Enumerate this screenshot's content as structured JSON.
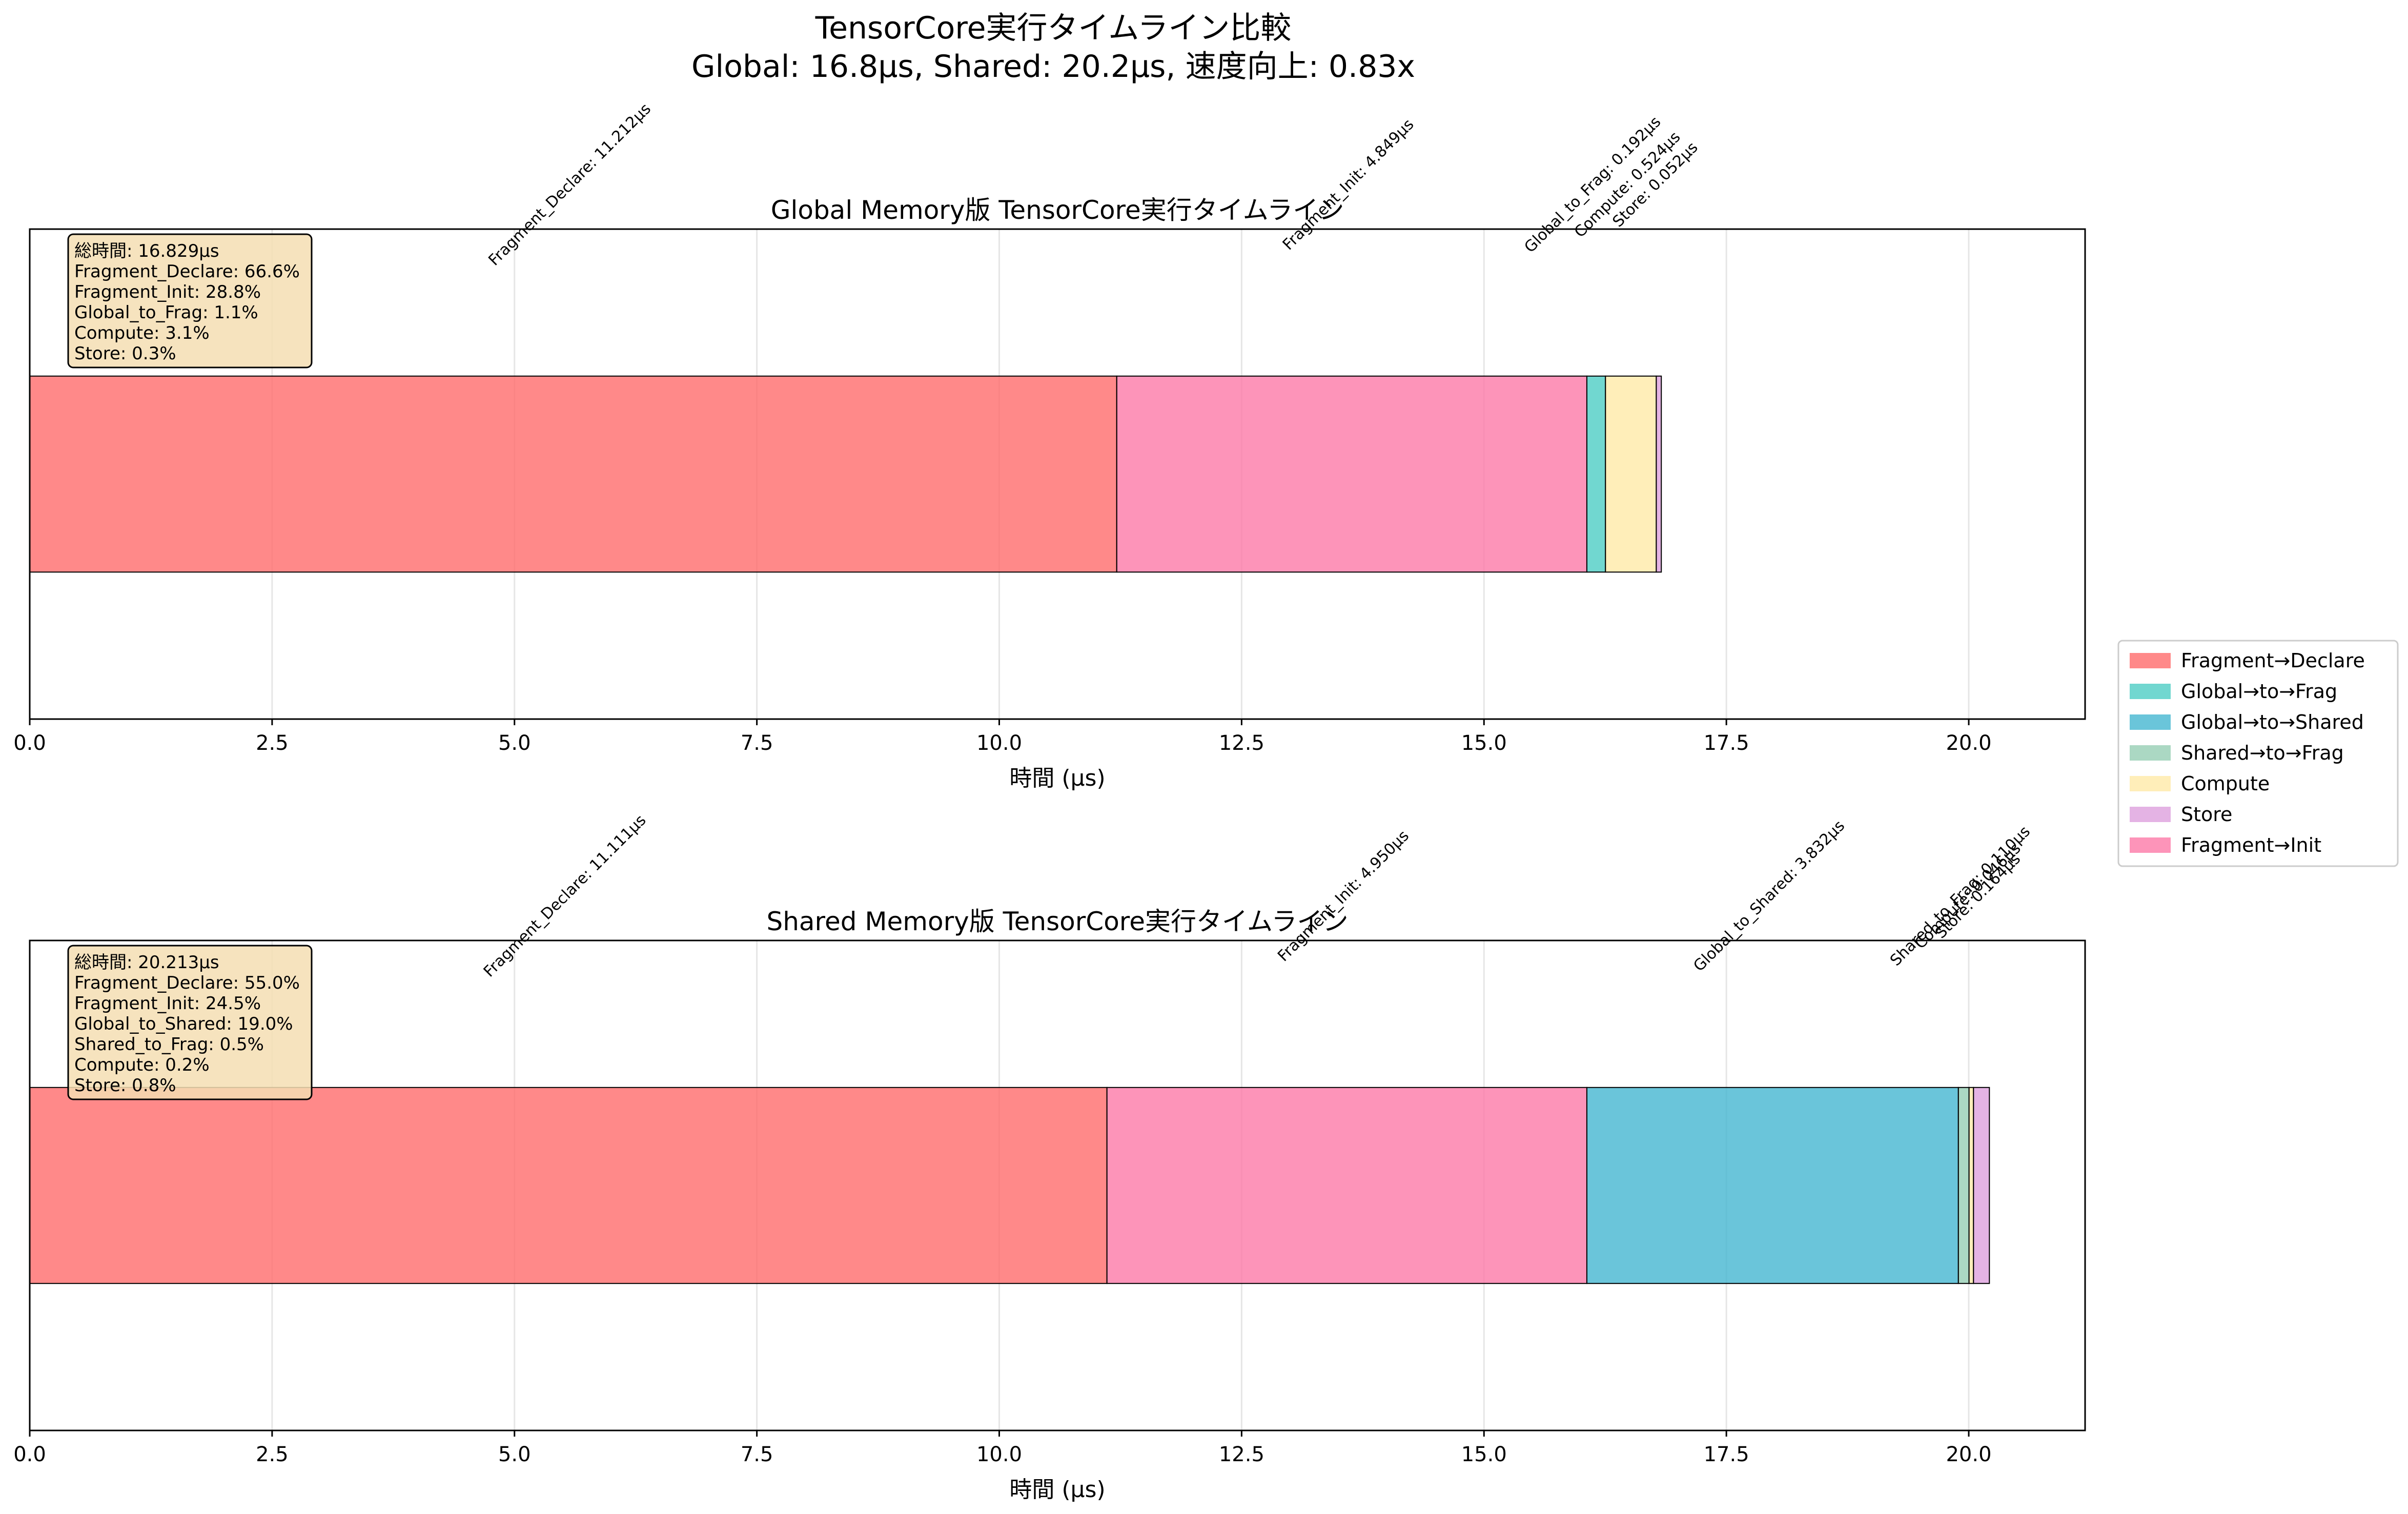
{
  "figure": {
    "title_line1": "TensorCore実行タイムライン比較",
    "title_line2": "Global: 16.8μs, Shared: 20.2μs, 速度向上: 0.83x"
  },
  "legend": {
    "placement": "center-right, outside",
    "entries": [
      {
        "label": "Fragment→Declare",
        "color": "#ff6b6b"
      },
      {
        "label": "Global→to→Frag",
        "color": "#4ecdc4"
      },
      {
        "label": "Global→to→Shared",
        "color": "#45b7d1"
      },
      {
        "label": "Shared→to→Frag",
        "color": "#96ceb4"
      },
      {
        "label": "Compute",
        "color": "#ffeaa7"
      },
      {
        "label": "Store",
        "color": "#dda0dd"
      },
      {
        "label": "Fragment→Init",
        "color": "#fd79a8"
      }
    ]
  },
  "chart_data": [
    {
      "type": "bar",
      "orientation": "horizontal-stacked",
      "title": "Global Memory版 TensorCore実行タイムライン",
      "xlabel": "時間 (μs)",
      "xlim": [
        0,
        21.2
      ],
      "xticks": [
        "0.0",
        "2.5",
        "5.0",
        "7.5",
        "10.0",
        "12.5",
        "15.0",
        "17.5",
        "20.0"
      ],
      "grid": true,
      "segments": [
        {
          "name": "Fragment_Declare",
          "value": 11.212,
          "color": "#ff6b6b",
          "label": "Fragment_Declare: 11.212μs"
        },
        {
          "name": "Fragment_Init",
          "value": 4.849,
          "color": "#fd79a8",
          "label": "Fragment_Init: 4.849μs"
        },
        {
          "name": "Global_to_Frag",
          "value": 0.192,
          "color": "#4ecdc4",
          "label": "Global_to_Frag: 0.192μs"
        },
        {
          "name": "Compute",
          "value": 0.524,
          "color": "#ffeaa7",
          "label": "Compute: 0.524μs"
        },
        {
          "name": "Store",
          "value": 0.052,
          "color": "#dda0dd",
          "label": "Store: 0.052μs"
        }
      ],
      "summary": [
        "総時間: 16.829μs",
        "Fragment_Declare: 66.6%",
        "Fragment_Init: 28.8%",
        "Global_to_Frag: 1.1%",
        "Compute: 3.1%",
        "Store: 0.3%"
      ]
    },
    {
      "type": "bar",
      "orientation": "horizontal-stacked",
      "title": "Shared Memory版 TensorCore実行タイムライン",
      "xlabel": "時間 (μs)",
      "xlim": [
        0,
        21.2
      ],
      "xticks": [
        "0.0",
        "2.5",
        "5.0",
        "7.5",
        "10.0",
        "12.5",
        "15.0",
        "17.5",
        "20.0"
      ],
      "grid": true,
      "segments": [
        {
          "name": "Fragment_Declare",
          "value": 11.111,
          "color": "#ff6b6b",
          "label": "Fragment_Declare: 11.111μs"
        },
        {
          "name": "Fragment_Init",
          "value": 4.95,
          "color": "#fd79a8",
          "label": "Fragment_Init: 4.950μs"
        },
        {
          "name": "Global_to_Shared",
          "value": 3.832,
          "color": "#45b7d1",
          "label": "Global_to_Shared: 3.832μs"
        },
        {
          "name": "Shared_to_Frag",
          "value": 0.11,
          "color": "#96ceb4",
          "label": "Shared_to_Frag: 0.110μs"
        },
        {
          "name": "Compute",
          "value": 0.046,
          "color": "#ffeaa7",
          "label": "Compute: 0.046μs"
        },
        {
          "name": "Store",
          "value": 0.164,
          "color": "#dda0dd",
          "label": "Store: 0.164μs"
        }
      ],
      "summary": [
        "総時間: 20.213μs",
        "Fragment_Declare: 55.0%",
        "Fragment_Init: 24.5%",
        "Global_to_Shared: 19.0%",
        "Shared_to_Frag: 0.5%",
        "Compute: 0.2%",
        "Store: 0.8%"
      ]
    }
  ]
}
